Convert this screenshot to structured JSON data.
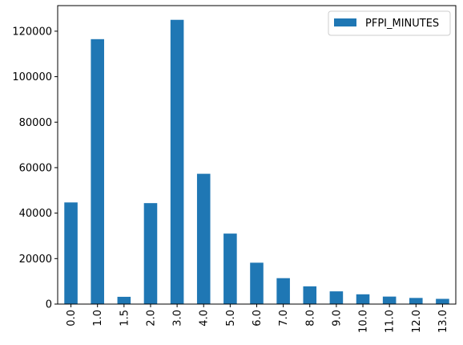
{
  "chart_data": {
    "type": "bar",
    "categories": [
      "0.0",
      "1.0",
      "1.5",
      "2.0",
      "3.0",
      "4.0",
      "5.0",
      "6.0",
      "7.0",
      "8.0",
      "9.0",
      "10.0",
      "11.0",
      "12.0",
      "13.0"
    ],
    "series": [
      {
        "name": "PFPI_MINUTES",
        "color": "#1f77b4",
        "values": [
          44700,
          116500,
          3200,
          44400,
          125000,
          57300,
          31000,
          18200,
          11400,
          7800,
          5600,
          4300,
          3300,
          2700,
          2300
        ]
      }
    ],
    "title": "",
    "xlabel": "",
    "ylabel": "",
    "ylim": [
      0,
      131250
    ],
    "yticks": [
      0,
      20000,
      40000,
      60000,
      80000,
      100000,
      120000
    ],
    "ytick_labels": [
      "0",
      "20000",
      "40000",
      "60000",
      "80000",
      "100000",
      "120000"
    ],
    "x_tick_rotation": "vertical",
    "grid": false,
    "legend_position": "top-right"
  }
}
